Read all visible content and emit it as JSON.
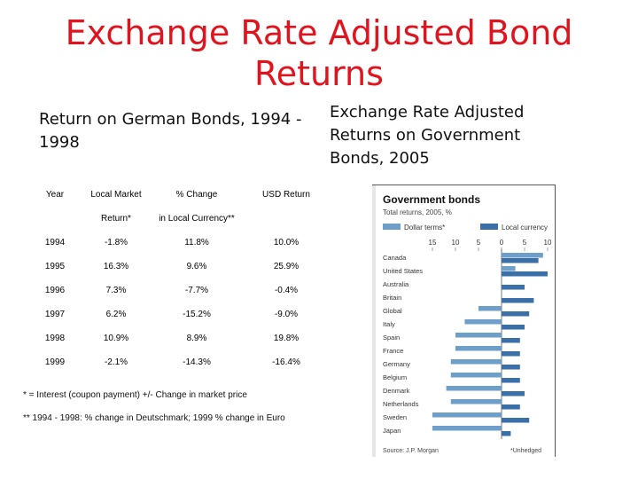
{
  "slide": {
    "title": "Exchange Rate Adjusted Bond Returns",
    "left_subtitle": "Return on German Bonds, 1994 - 1998",
    "right_subtitle": "Exchange Rate Adjusted Returns on Government Bonds, 2005"
  },
  "table": {
    "headers": [
      "Year",
      "Local Market",
      "% Change",
      "USD Return"
    ],
    "subheaders": [
      "",
      "Return*",
      "in Local Currency**",
      ""
    ],
    "rows": [
      [
        "1994",
        "-1.8%",
        "11.8%",
        "10.0%"
      ],
      [
        "1995",
        "16.3%",
        "9.6%",
        "25.9%"
      ],
      [
        "1996",
        "7.3%",
        "-7.7%",
        "-0.4%"
      ],
      [
        "1997",
        "6.2%",
        "-15.2%",
        "-9.0%"
      ],
      [
        "1998",
        "10.9%",
        "8.9%",
        "19.8%"
      ],
      [
        "1999",
        "-2.1%",
        "-14.3%",
        "-16.4%"
      ]
    ],
    "footnote1": "* = Interest (coupon payment) +/- Change in market price",
    "footnote2": "** 1994 - 1998: % change in Deutschmark; 1999 % change in Euro"
  },
  "chart_data": {
    "type": "bar",
    "orientation": "horizontal",
    "title": "Government bonds",
    "subtitle": "Total returns, 2005, %",
    "categories": [
      "Canada",
      "United States",
      "Australia",
      "Britain",
      "Global",
      "Italy",
      "Spain",
      "France",
      "Germany",
      "Belgium",
      "Denmark",
      "Netherlands",
      "Sweden",
      "Japan"
    ],
    "series": [
      {
        "name": "Dollar terms*",
        "color": "#6e9fc8",
        "values": [
          9,
          3,
          0,
          0,
          -5,
          -8,
          -10,
          -10,
          -11,
          -11,
          -12,
          -11,
          -15,
          -15
        ]
      },
      {
        "name": "Local currency",
        "color": "#3a6fa8",
        "values": [
          8,
          10,
          5,
          7,
          6,
          5,
          4,
          4,
          4,
          4,
          5,
          4,
          6,
          2
        ]
      }
    ],
    "xlim": [
      -15,
      10
    ],
    "xticks": [
      "15",
      "10",
      "5",
      "0",
      "5",
      "10"
    ],
    "legend": "top",
    "source": "Source: J.P. Morgan",
    "footnote": "*Unhedged"
  }
}
